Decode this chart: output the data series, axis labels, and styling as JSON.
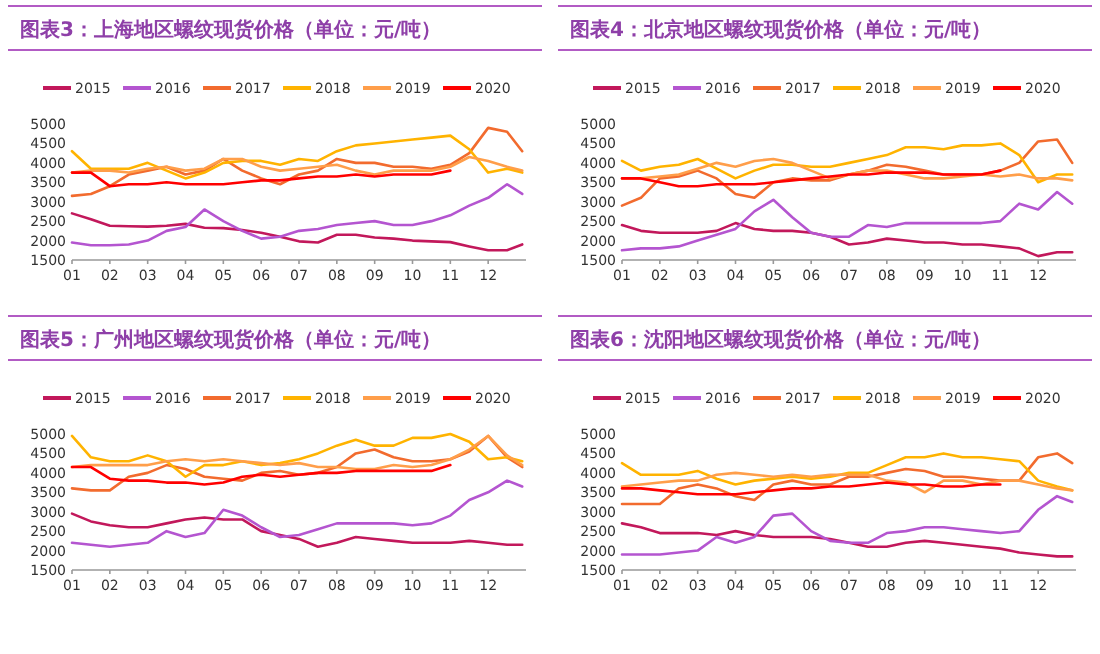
{
  "chart_data": [
    {
      "type": "line",
      "title": "图表3：上海地区螺纹现货价格（单位：元/吨）",
      "legend": "top",
      "x": [
        1,
        1.5,
        2,
        2.5,
        3,
        3.5,
        4,
        4.5,
        5,
        5.5,
        6,
        6.5,
        7,
        7.5,
        8,
        8.5,
        9,
        9.5,
        10,
        10.5,
        11,
        11.5,
        12,
        12.5,
        12.9
      ],
      "xlim": [
        1,
        13
      ],
      "xticks": [
        {
          "value": 1,
          "label": "01"
        },
        {
          "value": 2,
          "label": "02"
        },
        {
          "value": 3,
          "label": "03"
        },
        {
          "value": 4,
          "label": "04"
        },
        {
          "value": 5,
          "label": "05"
        },
        {
          "value": 6,
          "label": "06"
        },
        {
          "value": 7,
          "label": "07"
        },
        {
          "value": 8,
          "label": "08"
        },
        {
          "value": 9,
          "label": "09"
        },
        {
          "value": 10,
          "label": "10"
        },
        {
          "value": 11,
          "label": "11"
        },
        {
          "value": 12,
          "label": "12"
        }
      ],
      "ylim": [
        1500,
        5000
      ],
      "yticks": [
        1500,
        2000,
        2500,
        3000,
        3500,
        4000,
        4500,
        5000
      ],
      "series": [
        {
          "name": "2015",
          "color": "#c2185b",
          "values": [
            2700,
            2550,
            2380,
            2370,
            2360,
            2380,
            2430,
            2330,
            2320,
            2270,
            2200,
            2100,
            1980,
            1950,
            2150,
            2150,
            2080,
            2050,
            2000,
            1980,
            1960,
            1850,
            1750,
            1750,
            1900
          ]
        },
        {
          "name": "2016",
          "color": "#b455d0",
          "values": [
            1950,
            1880,
            1880,
            1900,
            2000,
            2250,
            2350,
            2800,
            2500,
            2250,
            2050,
            2100,
            2250,
            2300,
            2400,
            2450,
            2500,
            2400,
            2400,
            2500,
            2650,
            2900,
            3100,
            3450,
            3200
          ]
        },
        {
          "name": "2017",
          "color": "#f26b2e",
          "values": [
            3150,
            3200,
            3400,
            3700,
            3800,
            3900,
            3700,
            3800,
            4100,
            3800,
            3600,
            3450,
            3700,
            3800,
            4100,
            4000,
            4000,
            3900,
            3900,
            3850,
            3950,
            4250,
            4900,
            4800,
            4300
          ]
        },
        {
          "name": "2018",
          "color": "#ffb300",
          "values": [
            4300,
            3850,
            3850,
            3850,
            4000,
            3800,
            3600,
            3750,
            4000,
            4050,
            4050,
            3950,
            4100,
            4050,
            4300,
            4450,
            4500,
            4550,
            4600,
            4650,
            4700,
            4350,
            3750,
            3850,
            3750
          ]
        },
        {
          "name": "2019",
          "color": "#ff9e4a",
          "values": [
            3750,
            3800,
            3800,
            3750,
            3850,
            3900,
            3800,
            3850,
            4100,
            4100,
            3900,
            3800,
            3850,
            3900,
            3950,
            3800,
            3700,
            3800,
            3800,
            3800,
            3900,
            4150,
            4050,
            3900,
            3800
          ]
        },
        {
          "name": "2020",
          "color": "#ff0000",
          "values": [
            3750,
            3750,
            3400,
            3450,
            3450,
            3500,
            3450,
            3450,
            3450,
            3500,
            3550,
            3550,
            3600,
            3650,
            3650,
            3700,
            3650,
            3700,
            3700,
            3700,
            3800,
            null,
            null,
            null,
            null
          ]
        }
      ]
    },
    {
      "type": "line",
      "title": "图表4：北京地区螺纹现货价格（单位：元/吨）",
      "legend": "top",
      "x": [
        1,
        1.5,
        2,
        2.5,
        3,
        3.5,
        4,
        4.5,
        5,
        5.5,
        6,
        6.5,
        7,
        7.5,
        8,
        8.5,
        9,
        9.5,
        10,
        10.5,
        11,
        11.5,
        12,
        12.5,
        12.9
      ],
      "xlim": [
        1,
        13
      ],
      "xticks": [
        {
          "value": 1,
          "label": "01"
        },
        {
          "value": 2,
          "label": "02"
        },
        {
          "value": 3,
          "label": "03"
        },
        {
          "value": 4,
          "label": "04"
        },
        {
          "value": 5,
          "label": "05"
        },
        {
          "value": 6,
          "label": "06"
        },
        {
          "value": 7,
          "label": "07"
        },
        {
          "value": 8,
          "label": "08"
        },
        {
          "value": 9,
          "label": "09"
        },
        {
          "value": 10,
          "label": "10"
        },
        {
          "value": 11,
          "label": "11"
        },
        {
          "value": 12,
          "label": "12"
        }
      ],
      "ylim": [
        1500,
        5000
      ],
      "yticks": [
        1500,
        2000,
        2500,
        3000,
        3500,
        4000,
        4500,
        5000
      ],
      "series": [
        {
          "name": "2015",
          "color": "#c2185b",
          "values": [
            2400,
            2250,
            2200,
            2200,
            2200,
            2250,
            2450,
            2300,
            2250,
            2250,
            2200,
            2100,
            1900,
            1950,
            2050,
            2000,
            1950,
            1950,
            1900,
            1900,
            1850,
            1800,
            1600,
            1700,
            1700
          ]
        },
        {
          "name": "2016",
          "color": "#b455d0",
          "values": [
            1750,
            1800,
            1800,
            1850,
            2000,
            2150,
            2300,
            2750,
            3050,
            2600,
            2200,
            2100,
            2100,
            2400,
            2350,
            2450,
            2450,
            2450,
            2450,
            2450,
            2500,
            2950,
            2800,
            3250,
            2950
          ]
        },
        {
          "name": "2017",
          "color": "#f26b2e",
          "values": [
            2900,
            3100,
            3600,
            3650,
            3800,
            3600,
            3200,
            3100,
            3500,
            3600,
            3550,
            3550,
            3700,
            3800,
            3950,
            3900,
            3800,
            3700,
            3700,
            3700,
            3800,
            4000,
            4550,
            4600,
            4000
          ]
        },
        {
          "name": "2018",
          "color": "#ffb300",
          "values": [
            4050,
            3800,
            3900,
            3950,
            4100,
            3850,
            3600,
            3800,
            3950,
            3950,
            3900,
            3900,
            4000,
            4100,
            4200,
            4400,
            4400,
            4350,
            4450,
            4450,
            4500,
            4200,
            3500,
            3700,
            3700
          ]
        },
        {
          "name": "2019",
          "color": "#ff9e4a",
          "values": [
            3600,
            3600,
            3650,
            3700,
            3850,
            4000,
            3900,
            4050,
            4100,
            4000,
            3800,
            3600,
            3700,
            3800,
            3800,
            3700,
            3600,
            3600,
            3650,
            3700,
            3650,
            3700,
            3600,
            3600,
            3550
          ]
        },
        {
          "name": "2020",
          "color": "#ff0000",
          "values": [
            3600,
            3600,
            3500,
            3400,
            3400,
            3450,
            3450,
            3450,
            3500,
            3550,
            3600,
            3650,
            3700,
            3700,
            3750,
            3750,
            3750,
            3700,
            3700,
            3700,
            3800,
            null,
            null,
            null,
            null
          ]
        }
      ]
    },
    {
      "type": "line",
      "title": "图表5：广州地区螺纹现货价格（单位：元/吨）",
      "legend": "top",
      "x": [
        1,
        1.5,
        2,
        2.5,
        3,
        3.5,
        4,
        4.5,
        5,
        5.5,
        6,
        6.5,
        7,
        7.5,
        8,
        8.5,
        9,
        9.5,
        10,
        10.5,
        11,
        11.5,
        12,
        12.5,
        12.9
      ],
      "xlim": [
        1,
        13
      ],
      "xticks": [
        {
          "value": 1,
          "label": "01"
        },
        {
          "value": 2,
          "label": "02"
        },
        {
          "value": 3,
          "label": "03"
        },
        {
          "value": 4,
          "label": "04"
        },
        {
          "value": 5,
          "label": "05"
        },
        {
          "value": 6,
          "label": "06"
        },
        {
          "value": 7,
          "label": "07"
        },
        {
          "value": 8,
          "label": "08"
        },
        {
          "value": 9,
          "label": "09"
        },
        {
          "value": 10,
          "label": "10"
        },
        {
          "value": 11,
          "label": "11"
        },
        {
          "value": 12,
          "label": "12"
        }
      ],
      "ylim": [
        1500,
        5000
      ],
      "yticks": [
        1500,
        2000,
        2500,
        3000,
        3500,
        4000,
        4500,
        5000
      ],
      "series": [
        {
          "name": "2015",
          "color": "#c2185b",
          "values": [
            2950,
            2750,
            2650,
            2600,
            2600,
            2700,
            2800,
            2850,
            2800,
            2800,
            2500,
            2400,
            2300,
            2100,
            2200,
            2350,
            2300,
            2250,
            2200,
            2200,
            2200,
            2250,
            2200,
            2150,
            2150
          ]
        },
        {
          "name": "2016",
          "color": "#b455d0",
          "values": [
            2200,
            2150,
            2100,
            2150,
            2200,
            2500,
            2350,
            2450,
            3050,
            2900,
            2600,
            2350,
            2400,
            2550,
            2700,
            2700,
            2700,
            2700,
            2650,
            2700,
            2900,
            3300,
            3500,
            3800,
            3650
          ]
        },
        {
          "name": "2017",
          "color": "#f26b2e",
          "values": [
            3600,
            3550,
            3550,
            3900,
            4000,
            4200,
            4100,
            3900,
            3850,
            3800,
            4000,
            4050,
            3950,
            4000,
            4150,
            4500,
            4600,
            4400,
            4300,
            4300,
            4350,
            4550,
            4950,
            4400,
            4150
          ]
        },
        {
          "name": "2018",
          "color": "#ffb300",
          "values": [
            4950,
            4400,
            4300,
            4300,
            4450,
            4300,
            3900,
            4200,
            4200,
            4300,
            4200,
            4250,
            4350,
            4500,
            4700,
            4850,
            4700,
            4700,
            4900,
            4900,
            5000,
            4800,
            4350,
            4400,
            4300
          ]
        },
        {
          "name": "2019",
          "color": "#ff9e4a",
          "values": [
            4150,
            4200,
            4200,
            4200,
            4200,
            4300,
            4350,
            4300,
            4350,
            4300,
            4250,
            4200,
            4250,
            4150,
            4150,
            4100,
            4100,
            4200,
            4150,
            4200,
            4350,
            4600,
            4950,
            4450,
            4200
          ]
        },
        {
          "name": "2020",
          "color": "#ff0000",
          "values": [
            4150,
            4150,
            3850,
            3800,
            3800,
            3750,
            3750,
            3700,
            3750,
            3900,
            3950,
            3900,
            3950,
            4000,
            4000,
            4050,
            4050,
            4050,
            4050,
            4050,
            4200,
            null,
            null,
            null,
            null
          ]
        }
      ]
    },
    {
      "type": "line",
      "title": "图表6：沈阳地区螺纹现货价格（单位：元/吨）",
      "legend": "top",
      "x": [
        1,
        1.5,
        2,
        2.5,
        3,
        3.5,
        4,
        4.5,
        5,
        5.5,
        6,
        6.5,
        7,
        7.5,
        8,
        8.5,
        9,
        9.5,
        10,
        10.5,
        11,
        11.5,
        12,
        12.5,
        12.9
      ],
      "xlim": [
        1,
        13
      ],
      "xticks": [
        {
          "value": 1,
          "label": "01"
        },
        {
          "value": 2,
          "label": "02"
        },
        {
          "value": 3,
          "label": "03"
        },
        {
          "value": 4,
          "label": "04"
        },
        {
          "value": 5,
          "label": "05"
        },
        {
          "value": 6,
          "label": "06"
        },
        {
          "value": 7,
          "label": "07"
        },
        {
          "value": 8,
          "label": "08"
        },
        {
          "value": 9,
          "label": "09"
        },
        {
          "value": 10,
          "label": "10"
        },
        {
          "value": 11,
          "label": "11"
        },
        {
          "value": 12,
          "label": "12"
        }
      ],
      "ylim": [
        1500,
        5000
      ],
      "yticks": [
        1500,
        2000,
        2500,
        3000,
        3500,
        4000,
        4500,
        5000
      ],
      "series": [
        {
          "name": "2015",
          "color": "#c2185b",
          "values": [
            2700,
            2600,
            2450,
            2450,
            2450,
            2400,
            2500,
            2400,
            2350,
            2350,
            2350,
            2300,
            2200,
            2100,
            2100,
            2200,
            2250,
            2200,
            2150,
            2100,
            2050,
            1950,
            1900,
            1850,
            1850
          ]
        },
        {
          "name": "2016",
          "color": "#b455d0",
          "values": [
            1900,
            1900,
            1900,
            1950,
            2000,
            2350,
            2200,
            2350,
            2900,
            2950,
            2500,
            2250,
            2200,
            2200,
            2450,
            2500,
            2600,
            2600,
            2550,
            2500,
            2450,
            2500,
            3050,
            3400,
            3250
          ]
        },
        {
          "name": "2017",
          "color": "#f26b2e",
          "values": [
            3200,
            3200,
            3200,
            3600,
            3700,
            3600,
            3400,
            3300,
            3700,
            3800,
            3700,
            3700,
            3900,
            3900,
            4000,
            4100,
            4050,
            3900,
            3900,
            3850,
            3800,
            3800,
            4400,
            4500,
            4250
          ]
        },
        {
          "name": "2018",
          "color": "#ffb300",
          "values": [
            4250,
            3950,
            3950,
            3950,
            4050,
            3850,
            3700,
            3800,
            3850,
            3900,
            3850,
            3900,
            4000,
            4000,
            4200,
            4400,
            4400,
            4500,
            4400,
            4400,
            4350,
            4300,
            3800,
            3650,
            3550
          ]
        },
        {
          "name": "2019",
          "color": "#ff9e4a",
          "values": [
            3650,
            3700,
            3750,
            3800,
            3800,
            3950,
            4000,
            3950,
            3900,
            3950,
            3900,
            3950,
            3950,
            3950,
            3800,
            3750,
            3500,
            3800,
            3800,
            3700,
            3800,
            3800,
            3700,
            3600,
            3550
          ]
        },
        {
          "name": "2020",
          "color": "#ff0000",
          "values": [
            3600,
            3600,
            3550,
            3500,
            3450,
            3450,
            3450,
            3500,
            3550,
            3600,
            3600,
            3650,
            3650,
            3700,
            3750,
            3700,
            3700,
            3650,
            3650,
            3700,
            3700,
            null,
            null,
            null,
            null
          ]
        }
      ]
    }
  ]
}
